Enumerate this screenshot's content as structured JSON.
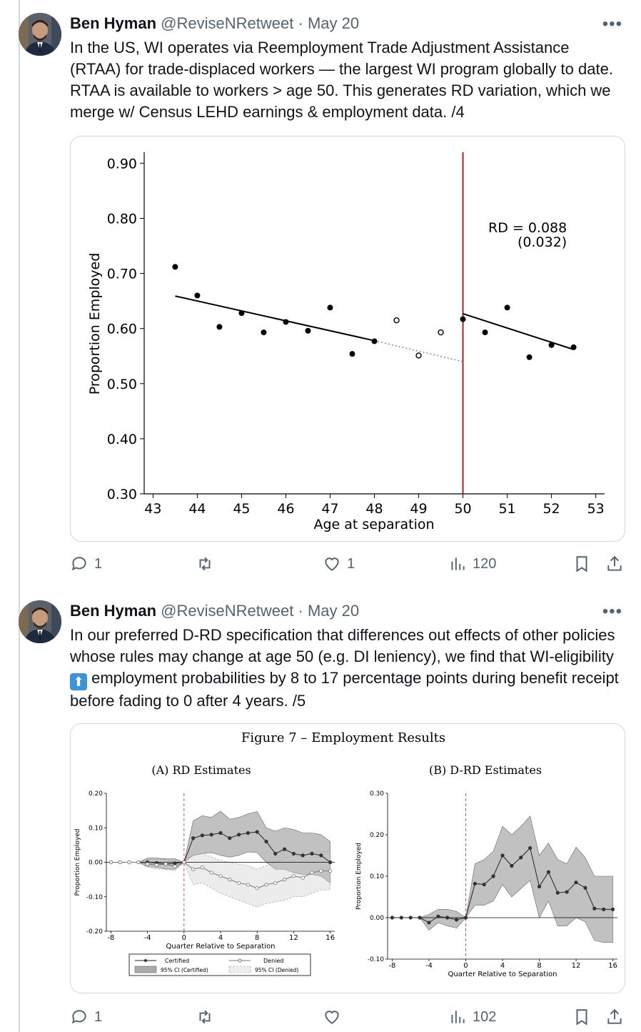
{
  "tweets": [
    {
      "author_name": "Ben Hyman",
      "handle": "@ReviseNRetweet",
      "separator": "·",
      "date": "May 20",
      "more": "•••",
      "text": "In the US, WI operates via Reemployment Trade Adjustment Assistance (RTAA) for trade-displaced workers — the largest WI program globally to date. RTAA is available to workers > age 50. This generates RD variation, which we merge w/ Census LEHD earnings & employment data. /4",
      "replies": "1",
      "retweets": "",
      "likes": "1",
      "views": "120"
    },
    {
      "author_name": "Ben Hyman",
      "handle": "@ReviseNRetweet",
      "separator": "·",
      "date": "May 20",
      "more": "•••",
      "text_before_emoji": "In our preferred D-RD specification that differences out effects of other policies whose rules may change at age 50 (e.g. DI leniency), we find that WI-eligibility",
      "emoji": "⬆",
      "text_after_emoji": " employment probabilities by 8 to 17 percentage points during benefit receipt before fading to 0 after 4 years. /5",
      "replies": "1",
      "retweets": "",
      "likes": "",
      "views": "102"
    }
  ],
  "icons": [
    "reply-icon",
    "retweet-icon",
    "like-icon",
    "views-icon",
    "bookmark-icon",
    "share-icon",
    "more-icon"
  ],
  "chart_data": [
    {
      "type": "scatter",
      "title": "",
      "xlabel": "Age at separation",
      "ylabel": "Proportion Employed",
      "xlim": [
        42.8,
        53.2
      ],
      "ylim": [
        0.3,
        0.92
      ],
      "xticks": [
        "43",
        "44",
        "45",
        "46",
        "47",
        "48",
        "49",
        "50",
        "51",
        "52",
        "53"
      ],
      "yticks": [
        "0.30",
        "0.40",
        "0.50",
        "0.60",
        "0.70",
        "0.80",
        "0.90"
      ],
      "cutoff": 50,
      "annotation_line1": "RD = 0.088",
      "annotation_line2": "(0.032)",
      "points_filled": [
        [
          43.5,
          0.712
        ],
        [
          44,
          0.66
        ],
        [
          44.5,
          0.603
        ],
        [
          45,
          0.628
        ],
        [
          45.5,
          0.593
        ],
        [
          46,
          0.612
        ],
        [
          46.5,
          0.596
        ],
        [
          47,
          0.638
        ],
        [
          47.5,
          0.554
        ],
        [
          48,
          0.577
        ],
        [
          50,
          0.617
        ],
        [
          50.5,
          0.593
        ],
        [
          51,
          0.638
        ],
        [
          51.5,
          0.548
        ],
        [
          52,
          0.57
        ],
        [
          52.5,
          0.566
        ]
      ],
      "points_hollow": [
        [
          48.5,
          0.615
        ],
        [
          49,
          0.551
        ],
        [
          49.5,
          0.593
        ]
      ],
      "fit_left": [
        [
          43.5,
          0.659
        ],
        [
          48,
          0.578
        ]
      ],
      "fit_left_extrapolated": [
        [
          48,
          0.578
        ],
        [
          50,
          0.54
        ]
      ],
      "fit_right": [
        [
          50,
          0.627
        ],
        [
          52.5,
          0.562
        ]
      ],
      "colors": {
        "cutoff": "#b22222",
        "points": "#000000"
      }
    },
    {
      "type": "line",
      "figure_title": "Figure 7 – Employment Results",
      "title": "(A) RD Estimates",
      "xlabel": "Quarter Relative to Separation",
      "ylabel": "Proportion Employed",
      "xlim": [
        -8.5,
        16.5
      ],
      "ylim": [
        -0.2,
        0.2
      ],
      "xticks": [
        "-8",
        "-4",
        "0",
        "4",
        "8",
        "12",
        "16"
      ],
      "yticks": [
        "-0.20",
        "-0.10",
        "0.00",
        "0.10",
        "0.20"
      ],
      "x": [
        -8,
        -7,
        -6,
        -5,
        -4,
        -3,
        -2,
        -1,
        0,
        1,
        2,
        3,
        4,
        5,
        6,
        7,
        8,
        9,
        10,
        11,
        12,
        13,
        14,
        15,
        16
      ],
      "series": [
        {
          "name": "Certified",
          "values": [
            0,
            0,
            0,
            0,
            0,
            -0.002,
            -0.005,
            -0.003,
            0,
            0.07,
            0.078,
            0.08,
            0.085,
            0.07,
            0.08,
            0.085,
            0.088,
            0.06,
            0.025,
            0.038,
            0.025,
            0.02,
            0.025,
            0.02,
            0
          ],
          "ci_upper": [
            0,
            0,
            0,
            0,
            0.012,
            0.012,
            0.01,
            0.01,
            0,
            0.12,
            0.135,
            0.13,
            0.148,
            0.125,
            0.13,
            0.14,
            0.147,
            0.1,
            0.09,
            0.1,
            0.095,
            0.085,
            0.085,
            0.08,
            0.06
          ],
          "ci_lower": [
            0,
            0,
            0,
            0,
            -0.012,
            -0.015,
            -0.02,
            -0.02,
            0,
            0.02,
            0.025,
            0.028,
            0.02,
            0.015,
            0.02,
            0.03,
            0.028,
            0.0,
            -0.02,
            -0.02,
            -0.03,
            -0.035,
            -0.035,
            -0.04,
            -0.06
          ]
        },
        {
          "name": "Denied",
          "values": [
            0,
            0,
            0,
            0,
            -0.005,
            -0.008,
            -0.005,
            -0.012,
            0,
            -0.02,
            -0.015,
            -0.03,
            -0.04,
            -0.05,
            -0.06,
            -0.065,
            -0.075,
            -0.065,
            -0.06,
            -0.05,
            -0.04,
            -0.045,
            -0.03,
            -0.025,
            -0.025
          ],
          "ci_upper": [
            0,
            0,
            0,
            0,
            0.008,
            0.01,
            0.008,
            0.005,
            0,
            0.02,
            0.025,
            0.015,
            0.005,
            0.0,
            -0.005,
            -0.01,
            -0.02,
            -0.01,
            0.0,
            0.01,
            0.02,
            0.015,
            0.03,
            0.03,
            0.03
          ],
          "ci_lower": [
            0,
            0,
            0,
            0,
            -0.015,
            -0.02,
            -0.018,
            -0.025,
            0,
            -0.065,
            -0.06,
            -0.075,
            -0.09,
            -0.1,
            -0.11,
            -0.12,
            -0.13,
            -0.12,
            -0.115,
            -0.11,
            -0.1,
            -0.1,
            -0.09,
            -0.08,
            -0.08
          ]
        }
      ],
      "legend": {
        "certified": "Certified",
        "denied": "Denied",
        "ci_certified": "95% CI (Certified)",
        "ci_denied": "95% CI (Denied)"
      }
    },
    {
      "type": "line",
      "title": "(B) D-RD Estimates",
      "xlabel": "Quarter Relative to Separation",
      "ylabel": "Proportion Employed",
      "xlim": [
        -8.5,
        16.5
      ],
      "ylim": [
        -0.1,
        0.3
      ],
      "xticks": [
        "-8",
        "-4",
        "0",
        "4",
        "8",
        "12",
        "16"
      ],
      "yticks": [
        "-0.10",
        "0.00",
        "0.10",
        "0.20",
        "0.30"
      ],
      "x": [
        -8,
        -7,
        -6,
        -5,
        -4,
        -3,
        -2,
        -1,
        0,
        1,
        2,
        3,
        4,
        5,
        6,
        7,
        8,
        9,
        10,
        11,
        12,
        13,
        14,
        15,
        16
      ],
      "series": [
        {
          "name": "D-RD",
          "values": [
            0,
            0,
            0,
            0,
            -0.012,
            0.003,
            0.0,
            -0.005,
            0,
            0.082,
            0.08,
            0.1,
            0.15,
            0.125,
            0.145,
            0.168,
            0.075,
            0.11,
            0.06,
            0.062,
            0.085,
            0.072,
            0.022,
            0.02,
            0.02
          ],
          "ci_upper": [
            0,
            0,
            0,
            0,
            0.008,
            0.02,
            0.02,
            0.015,
            0,
            0.13,
            0.14,
            0.16,
            0.22,
            0.2,
            0.22,
            0.245,
            0.15,
            0.18,
            0.14,
            0.13,
            0.17,
            0.145,
            0.1,
            0.1,
            0.1
          ],
          "ci_lower": [
            0,
            0,
            0,
            0,
            -0.03,
            -0.012,
            -0.02,
            -0.025,
            0,
            0.03,
            0.03,
            0.04,
            0.08,
            0.05,
            0.07,
            0.09,
            0.0,
            0.04,
            -0.02,
            -0.02,
            0.0,
            -0.01,
            -0.055,
            -0.06,
            -0.06
          ]
        }
      ]
    }
  ]
}
